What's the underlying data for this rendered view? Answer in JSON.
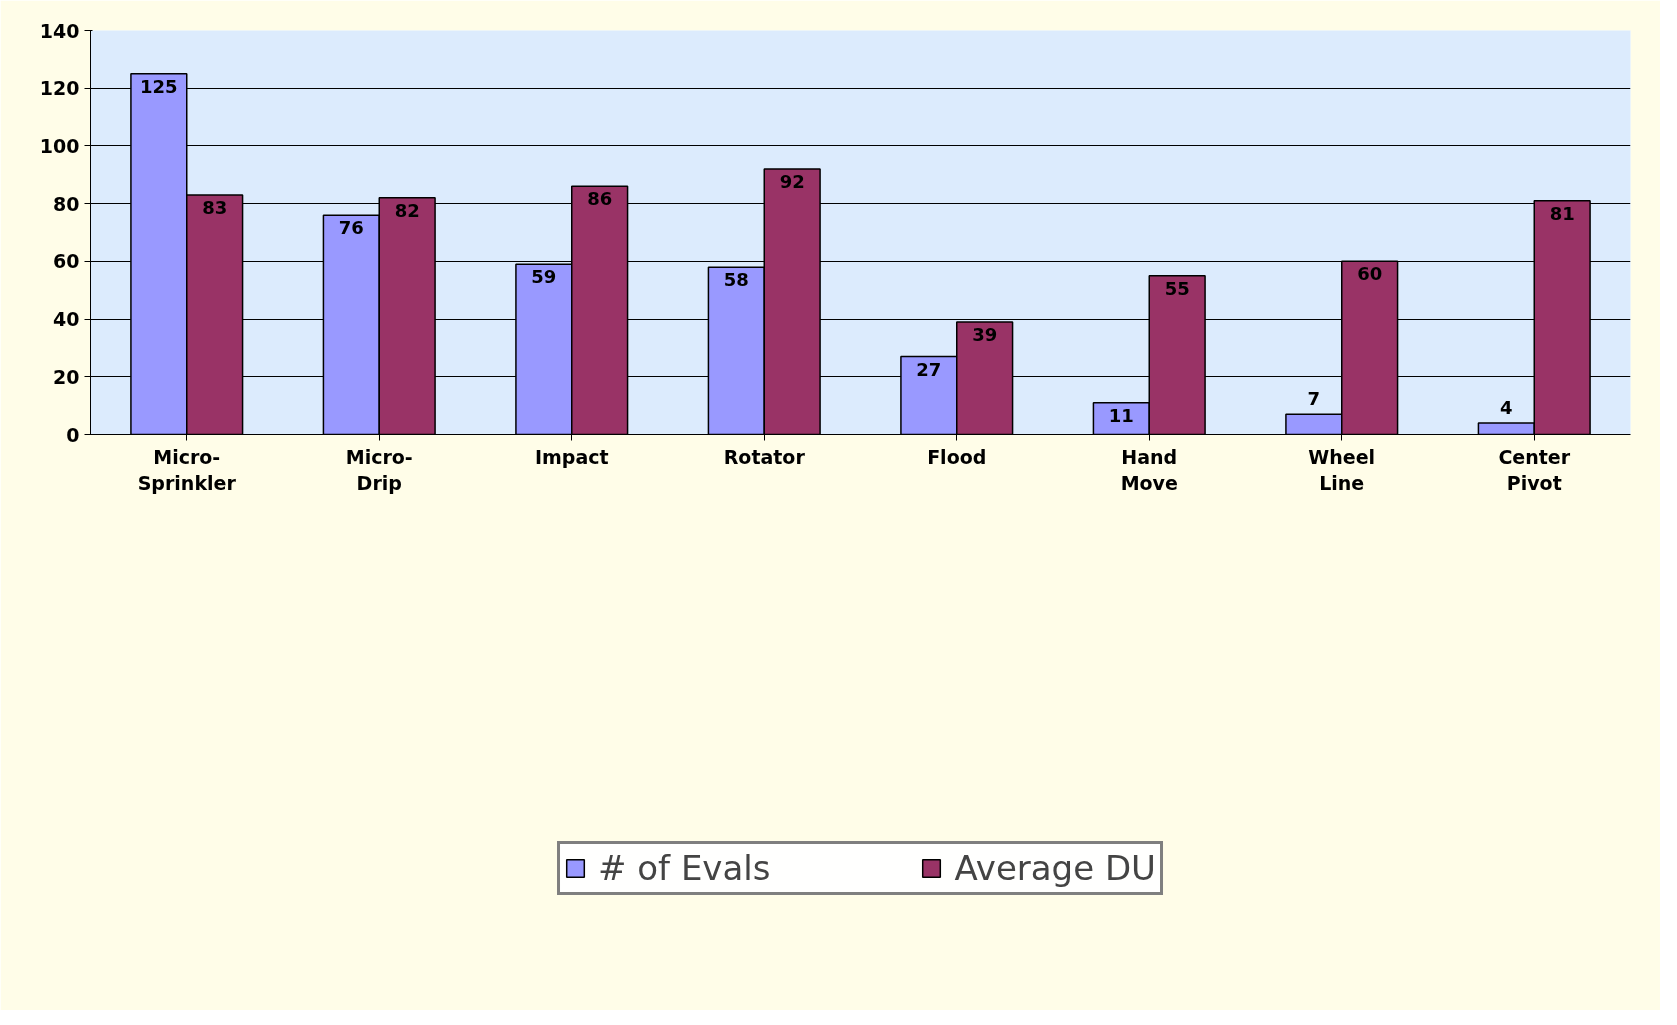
{
  "chart_data": {
    "type": "bar",
    "categories": [
      "Micro-Sprinkler",
      "Micro-Drip",
      "Impact",
      "Rotator",
      "Flood",
      "Hand Move",
      "Wheel Line",
      "Center Pivot"
    ],
    "series": [
      {
        "name": "# of Evals",
        "color": "#9999ff",
        "values": [
          125,
          76,
          59,
          58,
          27,
          11,
          7,
          4
        ]
      },
      {
        "name": "Average DU",
        "color": "#993366",
        "values": [
          83,
          82,
          86,
          92,
          39,
          55,
          60,
          81
        ]
      }
    ],
    "ylim": [
      0,
      140
    ],
    "yticks": [
      0,
      20,
      40,
      60,
      80,
      100,
      120,
      140
    ],
    "grid": "y",
    "legend": "bottom",
    "data_labels": true
  }
}
